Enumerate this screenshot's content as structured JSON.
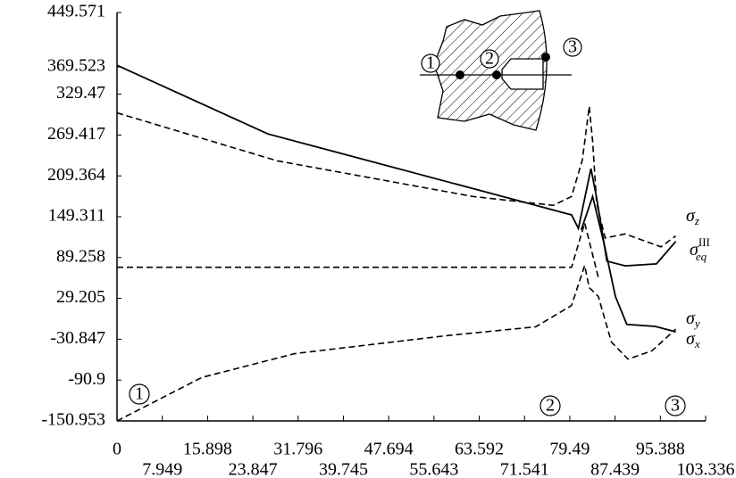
{
  "chart_data": {
    "type": "line",
    "xlim": [
      0,
      103.336
    ],
    "xticks": [
      0,
      7.949,
      15.898,
      23.847,
      31.796,
      39.745,
      47.694,
      55.643,
      63.592,
      71.541,
      79.49,
      87.439,
      95.388,
      103.336
    ],
    "ylim": [
      -150.953,
      449.571
    ],
    "yticks": [
      -150.953,
      -90.9,
      -30.847,
      29.205,
      89.258,
      149.311,
      209.364,
      269.417,
      329.47,
      369.523,
      449.571
    ],
    "series": [
      {
        "name": "σ",
        "subscript": "eq",
        "superscript": "III",
        "color": "#000000",
        "dash": false,
        "x": [
          0,
          26.5,
          79.8,
          81,
          83.2,
          84.2,
          86,
          89.2,
          94.7,
          98.1
        ],
        "values": [
          372,
          271,
          152,
          132,
          220,
          177,
          84,
          77,
          80,
          113
        ]
      },
      {
        "name": "σ",
        "subscript": "z",
        "color": "#000000",
        "dash": true,
        "x": [
          0,
          28.1,
          62.5,
          76.6,
          79.8,
          81.7,
          82.9,
          83.5,
          84.2,
          85.7,
          89.2,
          95.5,
          98.1
        ],
        "values": [
          302,
          231.5,
          179,
          166,
          179,
          233,
          311.5,
          260,
          169,
          118,
          124,
          105,
          121
        ]
      },
      {
        "name": "σ",
        "subscript": "y",
        "color": "#000000",
        "dash": false,
        "x": [
          81.5,
          83.5,
          85.5,
          87.5,
          89.5,
          94.5,
          98.1
        ],
        "values": [
          130,
          179,
          110,
          32,
          -9,
          -12,
          -20
        ]
      },
      {
        "name": "σ",
        "subscript": "x",
        "color": "#000000",
        "dash": true,
        "x": [
          0,
          14.9,
          31.2,
          57.8,
          73.5,
          79.8,
          82.1,
          82.9,
          84.5,
          86.8,
          89.7,
          93.9,
          98.1
        ],
        "values": [
          -151,
          -87,
          -52,
          -25.6,
          -12.6,
          18.8,
          77.6,
          45,
          32,
          -35,
          -60,
          -48,
          -16
        ]
      },
      {
        "color": "#000000",
        "dash": true,
        "x": [
          0,
          79.8,
          82.1,
          83.3,
          84.5
        ],
        "values": [
          75,
          75,
          140,
          100,
          60
        ]
      }
    ],
    "annotations": [
      "1",
      "2",
      "3"
    ],
    "inset_labels": [
      "1",
      "2",
      "3"
    ]
  }
}
